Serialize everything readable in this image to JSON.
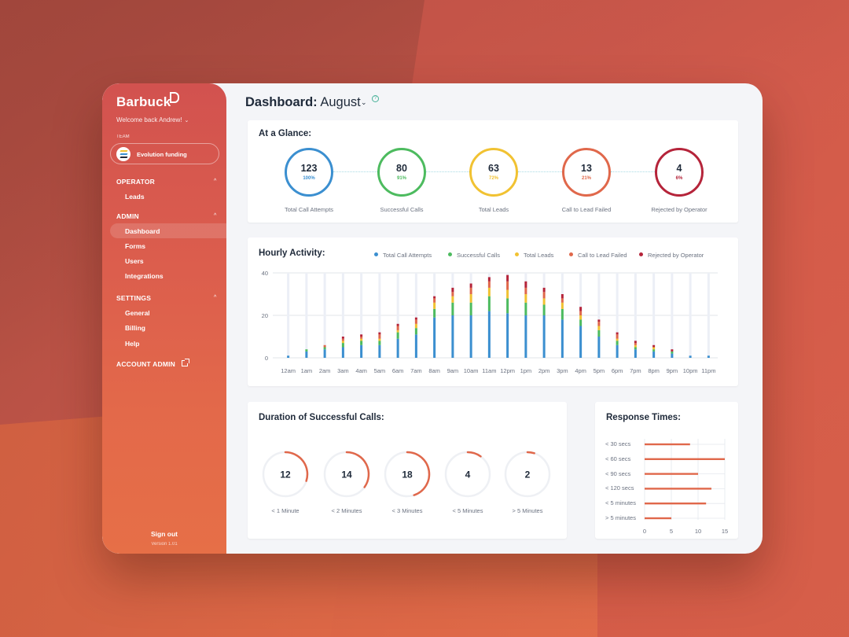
{
  "app": {
    "logo": "Barbuck",
    "welcome": "Welcome back Andrew!",
    "team_label": "TEAM",
    "team_name": "Evolution funding",
    "sign_out": "Sign out",
    "version": "Version 1.01"
  },
  "sidebar": {
    "sections": [
      {
        "title": "OPERATOR",
        "items": [
          "Leads"
        ]
      },
      {
        "title": "ADMIN",
        "items": [
          "Dashboard",
          "Forms",
          "Users",
          "Integrations"
        ]
      },
      {
        "title": "SETTINGS",
        "items": [
          "General",
          "Billing",
          "Help"
        ]
      }
    ],
    "account_admin": "ACCOUNT ADMIN",
    "active_item": "Dashboard"
  },
  "header": {
    "title_prefix": "Dashboard:",
    "month": "August"
  },
  "glance": {
    "title": "At a Glance:",
    "metrics": [
      {
        "value": "123",
        "pct": "100%",
        "label": "Total Call Attempts",
        "color": "#3b8fd0"
      },
      {
        "value": "80",
        "pct": "91%",
        "label": "Successful Calls",
        "color": "#4dbb5f"
      },
      {
        "value": "63",
        "pct": "72%",
        "label": "Total Leads",
        "color": "#f1c232"
      },
      {
        "value": "13",
        "pct": "21%",
        "label": "Call to Lead Failed",
        "color": "#e0684b"
      },
      {
        "value": "4",
        "pct": "6%",
        "label": "Rejected by Operator",
        "color": "#b5243a"
      }
    ]
  },
  "hourly": {
    "title": "Hourly Activity:",
    "legend": [
      {
        "name": "Total Call Attempts",
        "color": "#3b8fd0"
      },
      {
        "name": "Successful Calls",
        "color": "#4dbb5f"
      },
      {
        "name": "Total Leads",
        "color": "#f1c232"
      },
      {
        "name": "Call to Lead Failed",
        "color": "#e0684b"
      },
      {
        "name": "Rejected by Operator",
        "color": "#b5243a"
      }
    ]
  },
  "duration": {
    "title": "Duration of Successful Calls:",
    "color": "#e0684b",
    "items": [
      {
        "value": "12",
        "label": "< 1 Minute",
        "fraction": 0.3
      },
      {
        "value": "14",
        "label": "< 2 Minutes",
        "fraction": 0.35
      },
      {
        "value": "18",
        "label": "< 3 Minutes",
        "fraction": 0.45
      },
      {
        "value": "4",
        "label": "< 5 Minutes",
        "fraction": 0.1
      },
      {
        "value": "2",
        "label": "> 5 Minutes",
        "fraction": 0.05
      }
    ]
  },
  "response": {
    "title": "Response Times:",
    "labels": [
      "< 30 secs",
      "< 60 secs",
      "< 90 secs",
      "< 120 secs",
      "< 5 minutes",
      "> 5 minutes"
    ],
    "values": [
      8.5,
      15,
      10,
      12.5,
      11.5,
      5
    ],
    "ticks": [
      "0",
      "5",
      "10",
      "15"
    ],
    "xlim": [
      0,
      15
    ],
    "color": "#e0684b"
  },
  "chart_data": [
    {
      "type": "bar",
      "title": "Hourly Activity:",
      "stacked": true,
      "categories": [
        "12am",
        "1am",
        "2am",
        "3am",
        "4am",
        "5am",
        "6am",
        "7am",
        "8am",
        "9am",
        "10am",
        "11am",
        "12pm",
        "1pm",
        "2pm",
        "3pm",
        "4pm",
        "5pm",
        "6pm",
        "7pm",
        "8pm",
        "9pm",
        "10pm",
        "11pm"
      ],
      "ylim": [
        0,
        40
      ],
      "yticks": [
        "0",
        "20",
        "40"
      ],
      "grid": true,
      "legend_position": "top",
      "series": [
        {
          "name": "Total Call Attempts",
          "color": "#3b8fd0",
          "values": [
            1,
            3,
            4,
            5,
            6,
            6,
            9,
            11,
            19,
            20,
            20,
            22,
            21,
            20,
            20,
            18,
            15,
            10,
            6,
            4,
            3,
            2,
            1,
            1
          ]
        },
        {
          "name": "Successful Calls",
          "color": "#4dbb5f",
          "values": [
            0,
            1,
            1,
            2,
            2,
            2,
            3,
            3,
            4,
            6,
            6,
            7,
            7,
            6,
            5,
            5,
            3,
            3,
            2,
            1,
            1,
            1,
            0,
            0
          ]
        },
        {
          "name": "Total Leads",
          "color": "#f1c232",
          "values": [
            0,
            0,
            0,
            1,
            1,
            1,
            1,
            2,
            3,
            3,
            4,
            4,
            4,
            4,
            3,
            3,
            2,
            2,
            1,
            1,
            1,
            0,
            0,
            0
          ]
        },
        {
          "name": "Call to Lead Failed",
          "color": "#e0684b",
          "values": [
            0,
            0,
            1,
            1,
            1,
            2,
            2,
            2,
            2,
            2,
            3,
            3,
            4,
            3,
            3,
            2,
            2,
            2,
            2,
            1,
            0,
            0,
            0,
            0
          ]
        },
        {
          "name": "Rejected by Operator",
          "color": "#b5243a",
          "values": [
            0,
            0,
            0,
            1,
            1,
            1,
            1,
            1,
            1,
            2,
            2,
            2,
            3,
            3,
            2,
            2,
            2,
            1,
            1,
            1,
            1,
            1,
            0,
            0
          ]
        }
      ]
    },
    {
      "type": "bar",
      "orientation": "horizontal",
      "title": "Response Times:",
      "categories": [
        "< 30 secs",
        "< 60 secs",
        "< 90 secs",
        "< 120 secs",
        "< 5 minutes",
        "> 5 minutes"
      ],
      "values": [
        8.5,
        15,
        10,
        12.5,
        11.5,
        5
      ],
      "xlim": [
        0,
        15
      ],
      "xticks": [
        "0",
        "5",
        "10",
        "15"
      ]
    }
  ]
}
